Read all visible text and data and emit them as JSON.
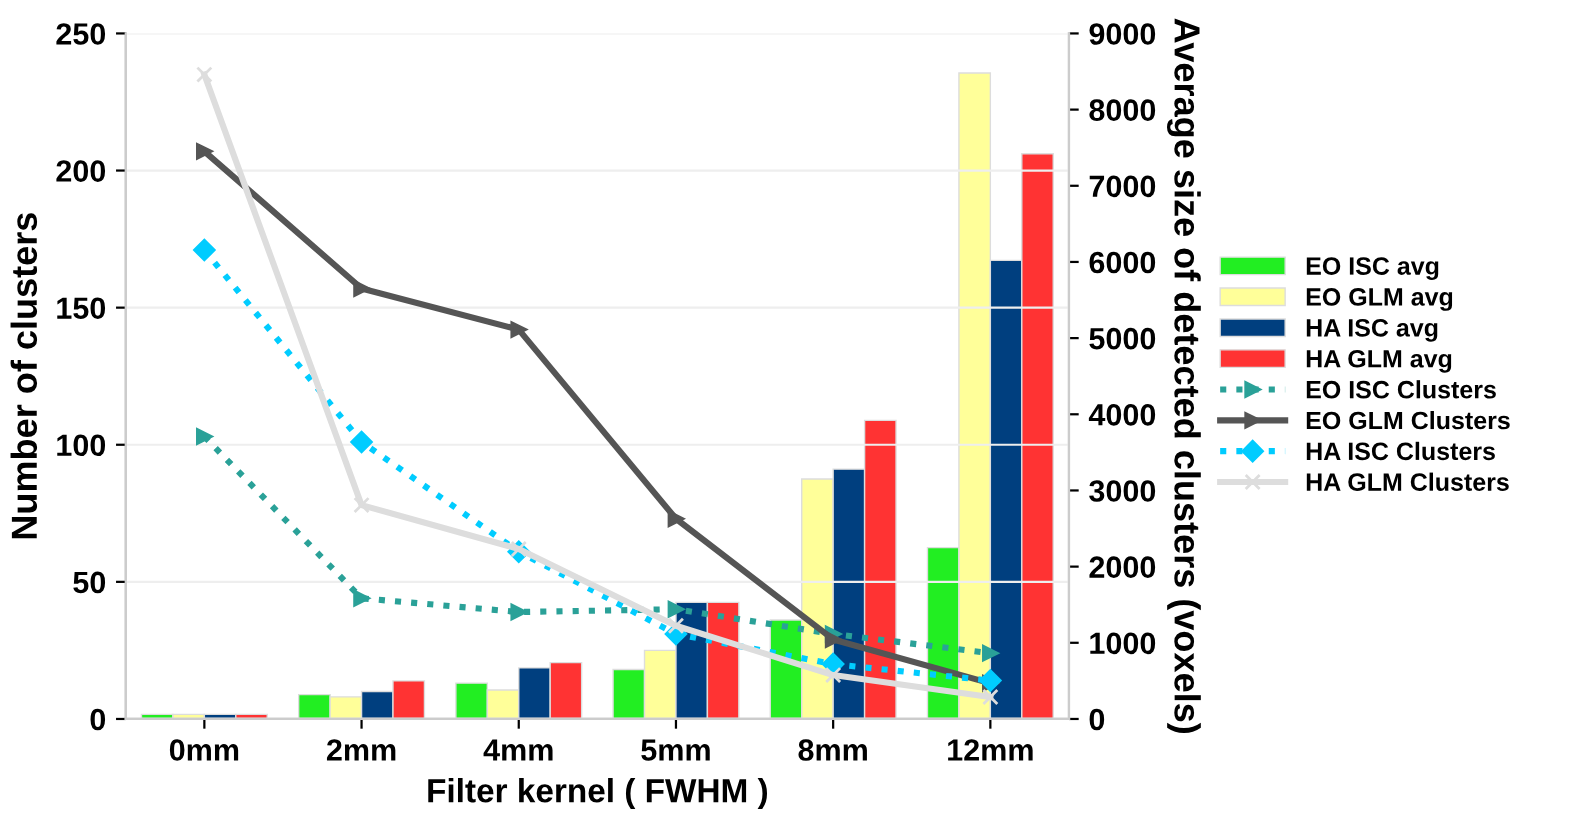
{
  "chart_data": {
    "type": "bar",
    "xlabel": "Filter kernel ( FWHM )",
    "ylabel": "Number of clusters",
    "y2label": "Average size of detected clusters (voxels)",
    "categories": [
      "0mm",
      "2mm",
      "4mm",
      "5mm",
      "8mm",
      "12mm"
    ],
    "series": [
      {
        "name": "EO ISC avg",
        "axis": "y2",
        "color": "#22ee22",
        "values": [
          60,
          320,
          470,
          650,
          1300,
          2250
        ]
      },
      {
        "name": "EO GLM avg",
        "axis": "y2",
        "color": "#ffff99",
        "values": [
          60,
          290,
          380,
          900,
          3150,
          8480
        ]
      },
      {
        "name": "HA ISC avg",
        "axis": "y2",
        "color": "#003f7f",
        "values": [
          60,
          360,
          670,
          1530,
          3280,
          6020
        ]
      },
      {
        "name": "HA GLM avg",
        "axis": "y2",
        "color": "#ff3333",
        "values": [
          60,
          500,
          740,
          1530,
          3920,
          7420
        ]
      },
      {
        "name": "EO ISC Clusters",
        "type": "line",
        "color": "#2aa198",
        "line_style": "dotted",
        "marker": "triangle",
        "values": [
          103,
          44,
          39,
          40,
          31,
          24
        ]
      },
      {
        "name": "EO GLM Clusters",
        "type": "line",
        "color": "#555555",
        "line_style": "solid",
        "marker": "triangle",
        "values": [
          207,
          157,
          142,
          73,
          29,
          13
        ]
      },
      {
        "name": "HA ISC Clusters",
        "type": "line",
        "color": "#00ccff",
        "line_style": "dotted",
        "marker": "diamond",
        "values": [
          171,
          101,
          61,
          31,
          20,
          14
        ]
      },
      {
        "name": "HA GLM Clusters",
        "type": "line",
        "color": "#dddddd",
        "line_style": "solid",
        "marker": "cross",
        "values": [
          235,
          78,
          62,
          34,
          16,
          8
        ]
      }
    ],
    "ylim": [
      0,
      250
    ],
    "yticks": [
      0,
      50,
      100,
      150,
      200,
      250
    ],
    "y2lim": [
      0,
      9000
    ],
    "y2ticks": [
      0,
      1000,
      2000,
      3000,
      4000,
      5000,
      6000,
      7000,
      8000,
      9000
    ],
    "grid": "y",
    "legend": "right"
  }
}
